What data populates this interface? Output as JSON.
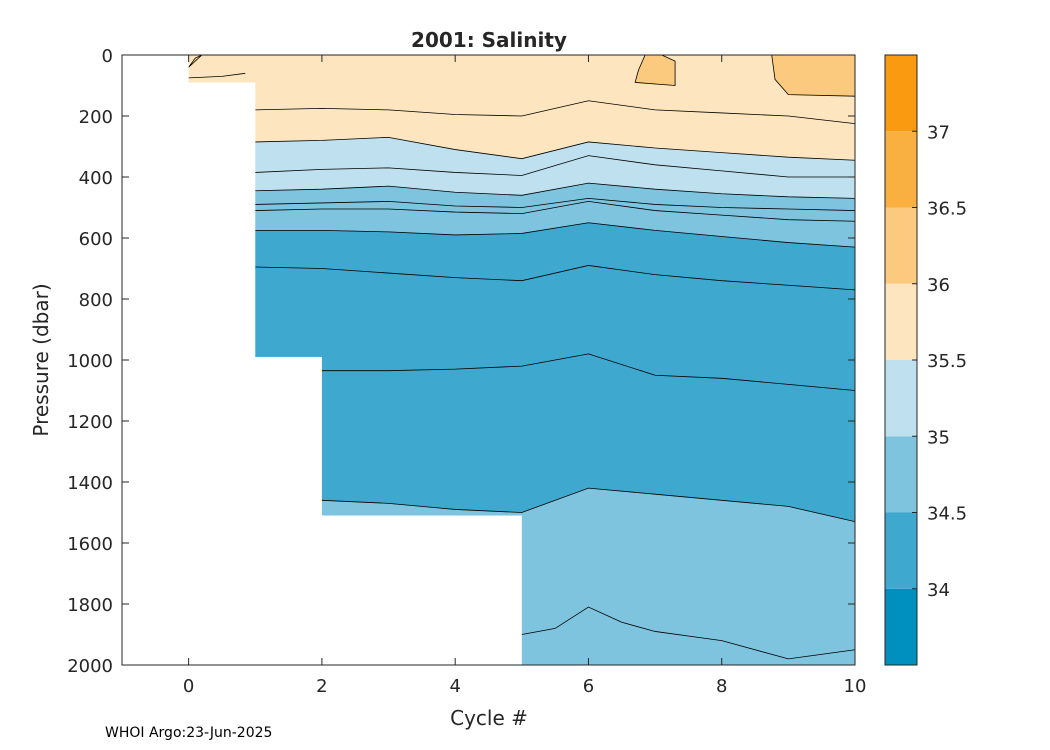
{
  "chart_data": {
    "type": "contour",
    "title": "2001:  Salinity",
    "xlabel": "Cycle #",
    "ylabel": "Pressure (dbar)",
    "xlim": [
      -1,
      10
    ],
    "ylim": [
      2000,
      0
    ],
    "xticks": [
      "0",
      "2",
      "4",
      "6",
      "8",
      "10"
    ],
    "yticks": [
      "0",
      "200",
      "400",
      "600",
      "800",
      "1000",
      "1200",
      "1400",
      "1600",
      "1800",
      "2000"
    ],
    "colorbar": {
      "levels": [
        33.5,
        34,
        34.5,
        35,
        35.5,
        36,
        36.5,
        37,
        37.5
      ],
      "tick_labels": [
        "34",
        "34.5",
        "35",
        "35.5",
        "36",
        "36.5",
        "37"
      ],
      "colors": [
        "#0090c0",
        "#3ea8cf",
        "#7fc4de",
        "#bfe0ee",
        "#fde6bf",
        "#fbca7f",
        "#f9b040",
        "#f99a10"
      ]
    },
    "bands": [
      {
        "range": "35.5-36",
        "color": "#fde6bf",
        "x": [
          0,
          1,
          2,
          3,
          4,
          5,
          6,
          7,
          8,
          9,
          10
        ],
        "top": [
          0,
          0,
          0,
          0,
          0,
          0,
          0,
          0,
          0,
          0,
          0
        ],
        "bottom": [
          90,
          285,
          280,
          270,
          310,
          340,
          285,
          305,
          320,
          335,
          345
        ]
      },
      {
        "range": "35-35.5",
        "color": "#bfe0ee",
        "x": [
          1,
          2,
          3,
          4,
          5,
          6,
          7,
          8,
          9,
          10
        ],
        "top": [
          285,
          280,
          270,
          310,
          340,
          285,
          305,
          320,
          335,
          345
        ],
        "bottom": [
          445,
          440,
          430,
          450,
          460,
          420,
          440,
          455,
          465,
          470
        ]
      },
      {
        "range": "34.5-35",
        "color": "#7fc4de",
        "x": [
          1,
          2,
          3,
          4,
          5,
          6,
          7,
          8,
          9,
          10
        ],
        "top": [
          445,
          440,
          430,
          450,
          460,
          420,
          440,
          455,
          465,
          470
        ],
        "bottom": [
          575,
          575,
          580,
          590,
          585,
          550,
          575,
          595,
          615,
          630
        ]
      },
      {
        "range": "34-34.5",
        "color": "#3ea8cf",
        "x": [
          1,
          2,
          3,
          4,
          5,
          6,
          7,
          8,
          9,
          10
        ],
        "top": [
          575,
          575,
          580,
          590,
          585,
          550,
          575,
          595,
          615,
          630
        ],
        "bottom": [
          990,
          1460,
          1470,
          1490,
          1500,
          1420,
          1440,
          1460,
          1480,
          1530
        ]
      },
      {
        "range": "34.5-35",
        "color": "#7fc4de",
        "x": [
          2,
          3,
          4,
          5,
          6,
          7,
          8,
          9,
          10
        ],
        "top": [
          1460,
          1470,
          1490,
          1500,
          1420,
          1440,
          1460,
          1480,
          1530
        ],
        "bottom": [
          1510,
          1510,
          1510,
          2000,
          2000,
          2000,
          2000,
          2000,
          2000
        ]
      }
    ],
    "contour_lines": [
      {
        "x": [
          1,
          2,
          3,
          4,
          5,
          6,
          7,
          8,
          9,
          10
        ],
        "p": [
          180,
          175,
          180,
          195,
          200,
          150,
          180,
          190,
          200,
          225
        ]
      },
      {
        "x": [
          1,
          2,
          3,
          4,
          5,
          6,
          7,
          8,
          9,
          10
        ],
        "p": [
          285,
          280,
          270,
          310,
          340,
          285,
          305,
          320,
          335,
          345
        ]
      },
      {
        "x": [
          1,
          2,
          3,
          4,
          5,
          6,
          7,
          8,
          9,
          10
        ],
        "p": [
          385,
          375,
          370,
          385,
          395,
          330,
          360,
          380,
          400,
          400
        ]
      },
      {
        "x": [
          1,
          2,
          3,
          4,
          5,
          6,
          7,
          8,
          9,
          10
        ],
        "p": [
          445,
          440,
          430,
          450,
          460,
          420,
          440,
          455,
          465,
          470
        ]
      },
      {
        "x": [
          1,
          2,
          3,
          4,
          5,
          6,
          7,
          8,
          9,
          10
        ],
        "p": [
          490,
          485,
          480,
          495,
          500,
          470,
          490,
          500,
          505,
          510
        ]
      },
      {
        "x": [
          1,
          2,
          3,
          4,
          5,
          6,
          7,
          8,
          9,
          10
        ],
        "p": [
          510,
          505,
          505,
          515,
          520,
          480,
          510,
          525,
          540,
          545
        ]
      },
      {
        "x": [
          1,
          2,
          3,
          4,
          5,
          6,
          7,
          8,
          9,
          10
        ],
        "p": [
          575,
          575,
          580,
          590,
          585,
          550,
          575,
          595,
          615,
          630
        ]
      },
      {
        "x": [
          1,
          2,
          3,
          4,
          5,
          6,
          7,
          8,
          9,
          10
        ],
        "p": [
          695,
          700,
          715,
          730,
          740,
          690,
          720,
          740,
          755,
          770
        ]
      },
      {
        "x": [
          2,
          3,
          4,
          5,
          6,
          7,
          8,
          9,
          10
        ],
        "p": [
          1035,
          1035,
          1030,
          1020,
          980,
          1050,
          1060,
          1080,
          1100
        ]
      },
      {
        "x": [
          2,
          3,
          4,
          5,
          6,
          7,
          8,
          9,
          10
        ],
        "p": [
          1460,
          1470,
          1490,
          1500,
          1420,
          1440,
          1460,
          1480,
          1530
        ]
      },
      {
        "x": [
          5,
          5.5,
          6,
          6.5,
          7,
          8,
          9,
          10
        ],
        "p": [
          1900,
          1880,
          1810,
          1860,
          1890,
          1920,
          1980,
          1950
        ]
      }
    ],
    "closed_contours": [
      {
        "color": "#fbca7f",
        "x": [
          6.7,
          6.75,
          6.85,
          7.1,
          7.3,
          7.3,
          6.7
        ],
        "p": [
          90,
          50,
          0,
          0,
          20,
          100,
          90
        ]
      },
      {
        "color": "#fbca7f",
        "x": [
          8.75,
          8.8,
          9.0,
          10,
          10,
          8.85,
          8.75
        ],
        "p": [
          0,
          80,
          130,
          135,
          0,
          0,
          0
        ]
      },
      {
        "color": "#fbca7f",
        "x": [
          0,
          0.1,
          0.2,
          0.2,
          0
        ],
        "p": [
          40,
          10,
          0,
          0,
          40
        ]
      }
    ],
    "missing_regions": [
      {
        "x_from": -1,
        "x_to": 0,
        "p_from": 0,
        "p_to": 2000
      },
      {
        "x_from": 0,
        "x_to": 1,
        "p_from": 90,
        "p_to": 2000
      },
      {
        "x_from": 1,
        "x_to": 2,
        "p_from": 990,
        "p_to": 2000
      },
      {
        "x_from": 2,
        "x_to": 5,
        "p_from": 1510,
        "p_to": 2000
      }
    ]
  },
  "footer": "WHOI Argo:23-Jun-2025"
}
